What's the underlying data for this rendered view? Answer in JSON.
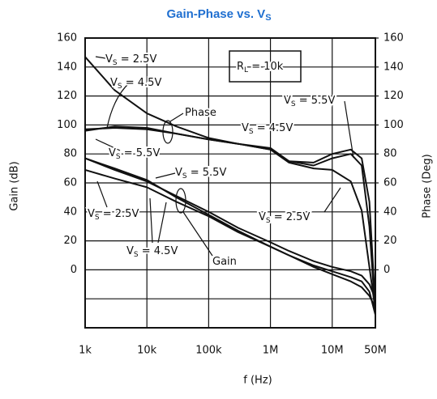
{
  "chart_data": {
    "type": "line",
    "title": {
      "main": "Gain-Phase vs. V",
      "sub": "S"
    },
    "x_label": "f (Hz)",
    "y_label": "Gain (dB)",
    "y2_label": "Phase (Deg)",
    "log_x": true,
    "grid": true,
    "color": "#111111",
    "xlim": [
      1000,
      50000000
    ],
    "xticks": [
      {
        "value": 1000,
        "label": "1k"
      },
      {
        "value": 10000,
        "label": "10k"
      },
      {
        "value": 100000,
        "label": "100k"
      },
      {
        "value": 1000000,
        "label": "1M"
      },
      {
        "value": 10000000,
        "label": "10M"
      },
      {
        "value": 50000000,
        "label": "50M"
      }
    ],
    "ylim": [
      -40,
      160
    ],
    "yticks": [
      0,
      20,
      40,
      60,
      80,
      100,
      120,
      140,
      160
    ],
    "minor_ygrid": [
      -20
    ],
    "y2lim": [
      -40,
      160
    ],
    "y2ticks": [
      0,
      20,
      40,
      60,
      80,
      100,
      120,
      140,
      160
    ],
    "x": [
      1000,
      3000,
      10000,
      30000,
      100000,
      300000,
      1000000,
      2000000,
      5000000,
      10000000,
      20000000,
      30000000,
      40000000,
      50000000
    ],
    "series": [
      {
        "axis": "y2",
        "values": [
          147,
          124,
          108,
          99,
          91,
          87,
          83,
          74,
          70,
          69,
          61,
          41,
          2,
          -28
        ]
      },
      {
        "axis": "y2",
        "values": [
          97,
          98,
          97,
          94,
          90,
          87,
          83,
          75,
          72,
          77,
          80,
          72,
          30,
          -31
        ]
      },
      {
        "axis": "y2",
        "values": [
          96,
          99,
          98,
          94,
          90,
          87,
          84,
          75,
          74,
          80,
          83,
          77,
          47,
          -26
        ]
      },
      {
        "axis": "y",
        "values": [
          77,
          70,
          62,
          50,
          38,
          27,
          16,
          10,
          3,
          -1,
          -5,
          -8,
          -15,
          -31
        ]
      },
      {
        "axis": "y",
        "values": [
          69,
          63,
          57,
          47,
          37,
          26,
          16,
          10,
          2,
          -3,
          -8,
          -12,
          -18,
          -26
        ]
      },
      {
        "axis": "y",
        "values": [
          77,
          69,
          61,
          51,
          40,
          29,
          19,
          13,
          6,
          2,
          -1,
          -4,
          -10,
          -20
        ]
      }
    ],
    "annotations": [
      {
        "main": "V",
        "sub": "S",
        "rest": " = 2.5V"
      },
      {
        "main": "V",
        "sub": "S",
        "rest": " = 4.5V"
      },
      {
        "main": "Phase"
      },
      {
        "main": "V",
        "sub": "S",
        "rest": " = 4.5V"
      },
      {
        "main": "V",
        "sub": "S",
        "rest": " = 5.5V"
      },
      {
        "main": "V",
        "sub": "S",
        "rest": " = 5.5V"
      },
      {
        "main": "V",
        "sub": "S",
        "rest": " = 5.5V"
      },
      {
        "main": "V",
        "sub": "S",
        "rest": " = 2.5V"
      },
      {
        "main": "V",
        "sub": "S",
        "rest": " = 2.5V"
      },
      {
        "main": "V",
        "sub": "S",
        "rest": " = 4.5V"
      },
      {
        "main": "Gain"
      },
      {
        "main": "R",
        "sub": "L",
        "rest": " = 10k"
      }
    ]
  }
}
